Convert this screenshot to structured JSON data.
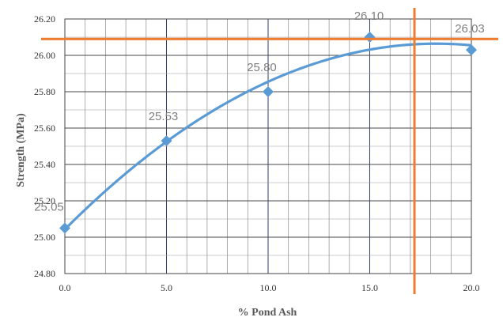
{
  "chart_data": {
    "type": "scatter",
    "xlabel": "% Pond Ash",
    "ylabel": "Strength (MPa)",
    "xlim": [
      0,
      20
    ],
    "ylim": [
      24.8,
      26.2
    ],
    "x_ticks": [
      "0.0",
      "5.0",
      "10.0",
      "15.0",
      "20.0"
    ],
    "y_ticks": [
      "24.80",
      "25.00",
      "25.20",
      "25.40",
      "25.60",
      "25.80",
      "26.00",
      "26.20"
    ],
    "grid": true,
    "series": [
      {
        "x": [
          0,
          5,
          10,
          15,
          20
        ],
        "y": [
          25.05,
          25.53,
          25.8,
          26.1,
          26.03
        ],
        "labels": [
          "25.05",
          "25.53",
          "25.80",
          "26.10",
          "26.03"
        ],
        "marker": "diamond",
        "trendline": "polynomial (order 2)",
        "color": "#5b9bd5"
      }
    ],
    "reference_lines": {
      "horizontal_y": 26.09,
      "vertical_x": 17.2,
      "color": "#ed7d31"
    }
  }
}
